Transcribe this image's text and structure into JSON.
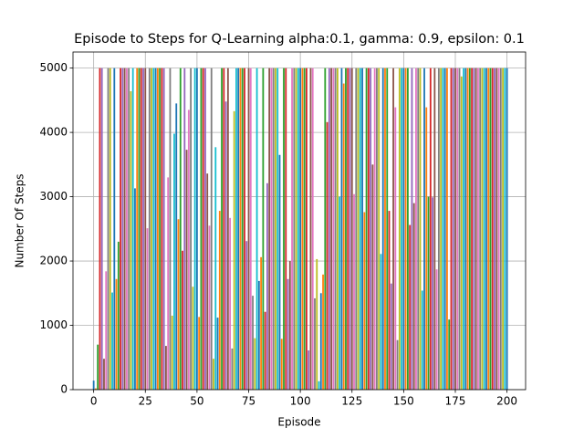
{
  "chart_data": {
    "type": "bar",
    "title": "Episode to Steps for Q-Learning alpha:0.1, gamma: 0.9, epsilon: 0.1",
    "x_label": "Episode",
    "y_label": "Number Of Steps",
    "colors": [
      "#1f77b4",
      "#ff7f0e",
      "#2ca02c",
      "#d62728",
      "#9467bd",
      "#8c564b",
      "#e377c2",
      "#7f7f7f",
      "#bcbd22",
      "#17becf"
    ],
    "values": [
      140,
      20,
      700,
      5000,
      5000,
      480,
      1840,
      5000,
      5000,
      1510,
      5000,
      1720,
      2300,
      5000,
      5000,
      5000,
      5000,
      5000,
      4640,
      5000,
      3130,
      5000,
      5000,
      5000,
      5000,
      5000,
      2510,
      5000,
      5000,
      5000,
      5000,
      5000,
      5000,
      5000,
      5000,
      680,
      3300,
      5000,
      1150,
      3980,
      4450,
      2650,
      5000,
      2160,
      5000,
      3730,
      4350,
      5000,
      1600,
      5000,
      5000,
      1130,
      5000,
      5000,
      5000,
      3360,
      2550,
      5000,
      480,
      3770,
      1120,
      2780,
      5000,
      5000,
      4480,
      5000,
      2670,
      640,
      4330,
      5000,
      5000,
      5000,
      5000,
      5000,
      2310,
      5000,
      5000,
      1460,
      800,
      5000,
      1690,
      2060,
      5000,
      1210,
      3210,
      5000,
      5000,
      5000,
      5000,
      5000,
      3650,
      790,
      5000,
      5000,
      1720,
      2000,
      5000,
      5000,
      5000,
      5000,
      5000,
      5000,
      5000,
      5000,
      610,
      5000,
      5000,
      1420,
      2030,
      130,
      1500,
      1790,
      5000,
      4160,
      5000,
      5000,
      5000,
      5000,
      5000,
      3000,
      5000,
      4760,
      5000,
      5000,
      5000,
      5000,
      3040,
      5000,
      5000,
      5000,
      5000,
      2760,
      5000,
      5000,
      5000,
      3500,
      5000,
      5000,
      5000,
      2110,
      5000,
      5000,
      5000,
      2780,
      1650,
      5000,
      4390,
      770,
      5000,
      5000,
      5000,
      5000,
      5000,
      2560,
      5000,
      2900,
      5000,
      5000,
      5000,
      1540,
      5000,
      4390,
      3000,
      5000,
      2990,
      5000,
      1870,
      5000,
      5000,
      5000,
      5000,
      5000,
      1090,
      5000,
      5000,
      5000,
      5000,
      5000,
      4870,
      5000,
      5000,
      5000,
      5000,
      5000,
      5000,
      5000,
      5000,
      5000,
      5000,
      5000,
      5000,
      5000,
      5000,
      5000,
      5000,
      5000,
      5000,
      5000,
      5000,
      5000,
      5000
    ],
    "xlim": [
      -10,
      209
    ],
    "ylim": [
      0,
      5250
    ],
    "xticks": [
      0,
      25,
      50,
      75,
      100,
      125,
      150,
      175,
      200
    ],
    "yticks": [
      0,
      1000,
      2000,
      3000,
      4000,
      5000
    ],
    "grid": true
  }
}
